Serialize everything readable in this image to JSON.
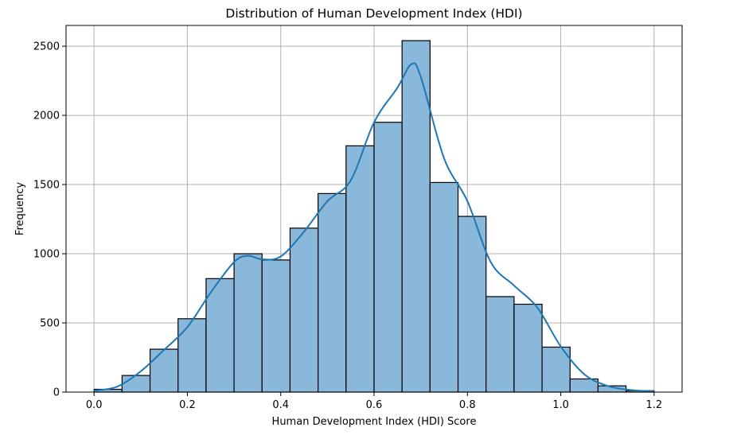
{
  "chart_data": {
    "type": "bar",
    "title": "Distribution of Human Development Index (HDI)",
    "xlabel": "Human Development Index (HDI) Score",
    "ylabel": "Frequency",
    "xlim": [
      -0.06,
      1.26
    ],
    "ylim": [
      0,
      2650
    ],
    "grid": true,
    "x_ticks": [
      0.0,
      0.2,
      0.4,
      0.6,
      0.8,
      1.0,
      1.2
    ],
    "x_tick_labels": [
      "0.0",
      "0.2",
      "0.4",
      "0.6",
      "0.8",
      "1.0",
      "1.2"
    ],
    "y_ticks": [
      0,
      500,
      1000,
      1500,
      2000,
      2500
    ],
    "y_tick_labels": [
      "0",
      "500",
      "1000",
      "1500",
      "2000",
      "2500"
    ],
    "bin_edges": [
      0.0,
      0.06,
      0.12,
      0.18,
      0.24,
      0.3,
      0.36,
      0.42,
      0.48,
      0.54,
      0.6,
      0.66,
      0.72,
      0.78,
      0.84,
      0.9,
      0.96,
      1.02,
      1.08,
      1.14,
      1.2
    ],
    "values": [
      20,
      120,
      310,
      530,
      820,
      1000,
      955,
      1185,
      1435,
      1780,
      1950,
      2540,
      1515,
      1270,
      690,
      635,
      325,
      95,
      45,
      10
    ],
    "kde": {
      "x": [
        0.0,
        0.05,
        0.1,
        0.15,
        0.2,
        0.25,
        0.3,
        0.33,
        0.36,
        0.4,
        0.45,
        0.5,
        0.55,
        0.6,
        0.65,
        0.68,
        0.7,
        0.75,
        0.8,
        0.85,
        0.9,
        0.95,
        1.0,
        1.05,
        1.1,
        1.15,
        1.2
      ],
      "y": [
        10,
        40,
        150,
        305,
        470,
        720,
        940,
        985,
        960,
        980,
        1160,
        1380,
        1530,
        1950,
        2200,
        2370,
        2280,
        1690,
        1380,
        940,
        770,
        610,
        330,
        130,
        45,
        15,
        5
      ]
    },
    "colors": {
      "bar_fill": "#89b8da",
      "bar_edge": "#000000",
      "kde_line": "#1f77b4",
      "grid": "#b0b0b0"
    }
  }
}
